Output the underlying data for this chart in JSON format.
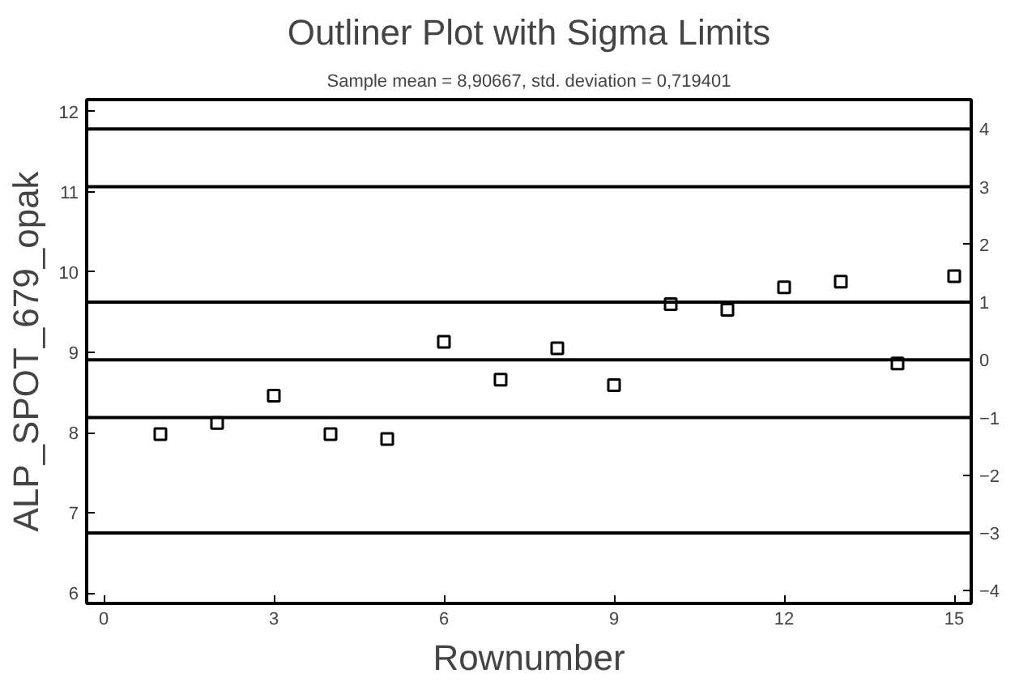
{
  "chart_data": {
    "type": "scatter",
    "title": "Outliner Plot with Sigma Limits",
    "subtitle": "Sample mean = 8,90667, std. deviation = 0,719401",
    "xlabel": "Rownumber",
    "ylabel": "ALP_SPOT_679_opak",
    "x": [
      1,
      2,
      3,
      4,
      5,
      6,
      7,
      8,
      9,
      10,
      11,
      12,
      13,
      14,
      15
    ],
    "values": [
      7.98,
      8.12,
      8.46,
      7.98,
      7.92,
      9.13,
      8.66,
      9.05,
      8.59,
      9.6,
      9.53,
      9.81,
      9.88,
      8.86,
      9.95
    ],
    "color": "#000000",
    "marker": "square",
    "grid": false,
    "xlim": [
      -0.3,
      15.3
    ],
    "xticks": [
      0,
      3,
      6,
      9,
      12,
      15
    ],
    "ylim": [
      5.87,
      12.15
    ],
    "yticks": [
      6,
      7,
      8,
      9,
      10,
      11,
      12
    ],
    "y2lim": [
      -4.22,
      4.51
    ],
    "y2ticks": [
      -4,
      -3,
      -2,
      -1,
      0,
      1,
      2,
      3,
      4
    ],
    "ref_lines": [
      {
        "axis": "y2",
        "value": 4,
        "color": "#000000"
      },
      {
        "axis": "y2",
        "value": 3,
        "color": "#000000"
      },
      {
        "axis": "y2",
        "value": 1,
        "color": "#000000"
      },
      {
        "axis": "y2",
        "value": 0,
        "color": "#000000"
      },
      {
        "axis": "y2",
        "value": -1,
        "color": "#000000"
      },
      {
        "axis": "y2",
        "value": -3,
        "color": "#000000"
      }
    ]
  }
}
